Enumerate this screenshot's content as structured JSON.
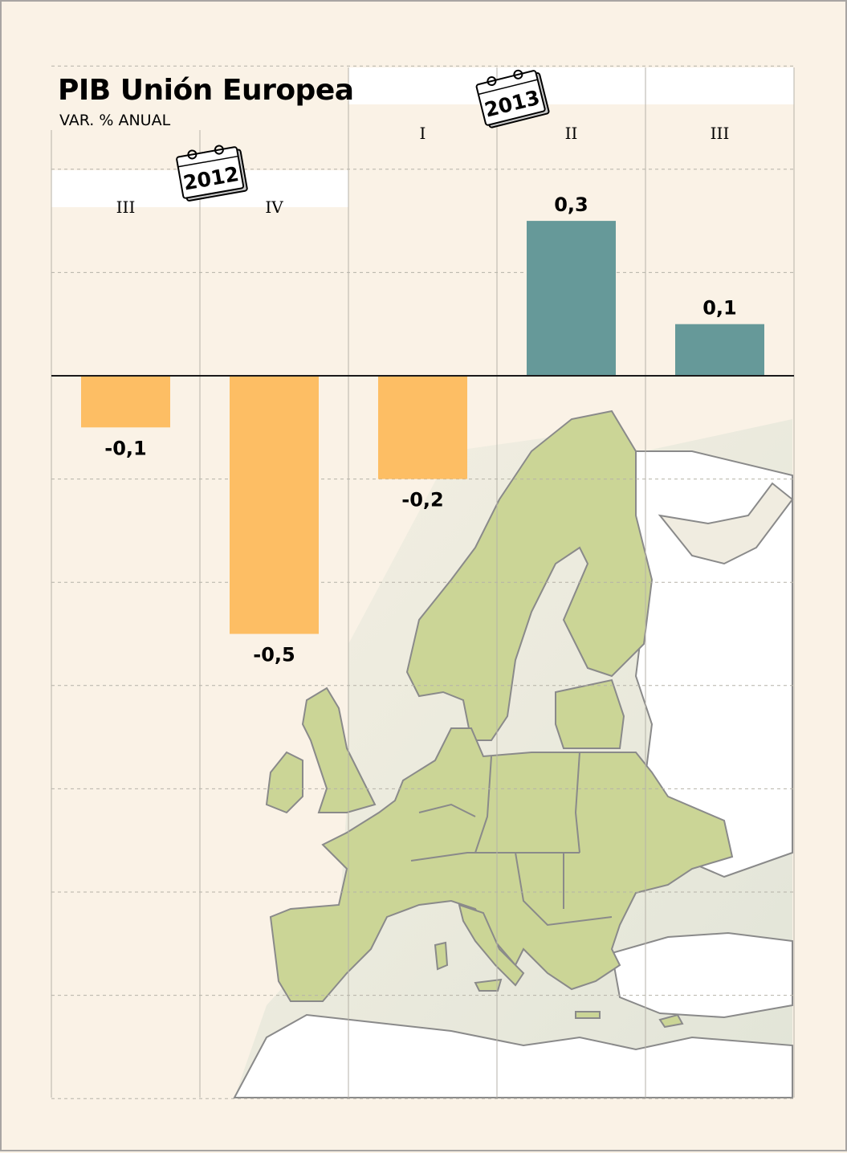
{
  "chart_data": {
    "type": "bar",
    "title": "PIB Unión Europea",
    "subtitle": "VAR. % ANUAL",
    "categories": [
      "III",
      "IV",
      "I",
      "II",
      "III"
    ],
    "years": [
      {
        "label": "2012",
        "quarters": [
          "III",
          "IV"
        ]
      },
      {
        "label": "2013",
        "quarters": [
          "I",
          "II",
          "III"
        ]
      }
    ],
    "values": [
      -0.1,
      -0.5,
      -0.2,
      0.3,
      0.1
    ],
    "value_labels": [
      "-0,1",
      "-0,5",
      "-0,2",
      "0,3",
      "0,1"
    ],
    "ylim": [
      -1.4,
      0.6
    ],
    "grid": "horizontal dashed",
    "colors": {
      "negative": "#fdbe64",
      "positive": "#669999",
      "background": "#faf2e6",
      "map_land": "#cbd596",
      "map_sea": "#e6e8dc",
      "map_border": "#8a8a8a"
    }
  }
}
